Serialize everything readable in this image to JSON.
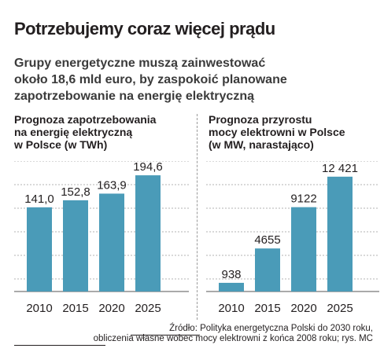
{
  "title": "Potrzebujemy coraz więcej prądu",
  "subtitle_lines": [
    "Grupy energetyczne muszą zainwestować",
    "około 18,6 mld euro, by zaspokoić planowane",
    "zapotrzebowanie na energię elektryczną"
  ],
  "colors": {
    "bar": "#4a9bb8",
    "grid": "#9a9a9a",
    "text": "#231f20"
  },
  "chart_data": [
    {
      "type": "bar",
      "title_lines": [
        "Prognoza zapotrzebowania",
        "na energię elektryczną",
        "w Polsce (w TWh)"
      ],
      "categories": [
        "2010",
        "2015",
        "2020",
        "2025"
      ],
      "values": [
        141.0,
        152.8,
        163.9,
        194.6
      ],
      "value_labels": [
        "141,0",
        "152,8",
        "163,9",
        "194,6"
      ],
      "ylim": [
        0,
        200
      ],
      "grid": true
    },
    {
      "type": "bar",
      "title_lines": [
        "Prognoza przyrostu",
        "mocy elektrowni w Polsce",
        "(w MW, narastająco)"
      ],
      "categories": [
        "2010",
        "2015",
        "2020",
        "2025"
      ],
      "values": [
        938,
        4655,
        9122,
        12421
      ],
      "value_labels": [
        "938",
        "4655",
        "9122",
        "12 421"
      ],
      "grid": true
    }
  ],
  "source_lines": [
    "Źródło: Polityka energetyczna Polski do 2030 roku,",
    "obliczenia własne wobec mocy elektrowni z końca 2008 roku;  rys. MC"
  ]
}
